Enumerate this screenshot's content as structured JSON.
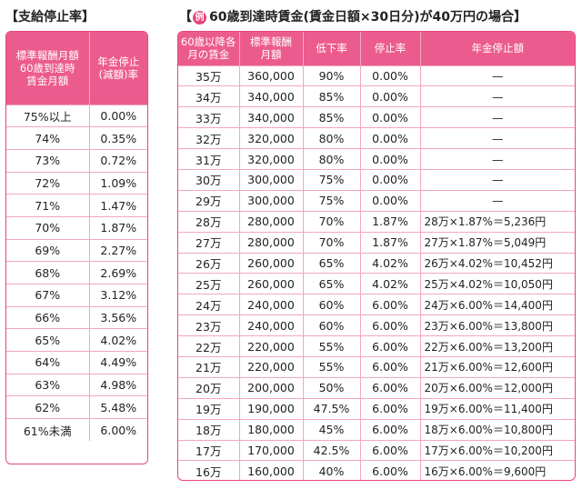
{
  "left": {
    "title": "【支給停止率】",
    "header": [
      "標準報酬月額\n60歳到達時\n賃金月額",
      "年金停止\n(減額)率"
    ],
    "rows": [
      [
        "75%以上",
        "0.00%"
      ],
      [
        "74%",
        "0.35%"
      ],
      [
        "73%",
        "0.72%"
      ],
      [
        "72%",
        "1.09%"
      ],
      [
        "71%",
        "1.47%"
      ],
      [
        "70%",
        "1.87%"
      ],
      [
        "69%",
        "2.27%"
      ],
      [
        "68%",
        "2.69%"
      ],
      [
        "67%",
        "3.12%"
      ],
      [
        "66%",
        "3.56%"
      ],
      [
        "65%",
        "4.02%"
      ],
      [
        "64%",
        "4.49%"
      ],
      [
        "63%",
        "4.98%"
      ],
      [
        "62%",
        "5.48%"
      ],
      [
        "61%未満",
        "6.00%"
      ]
    ]
  },
  "right": {
    "title_open": "【",
    "badge": "例",
    "title_text": "60歳到達時賃金(賃金日額×30日分)が40万円の場合】",
    "header": [
      "60歳以降各\n月の賃金",
      "標準報酬\n月額",
      "低下率",
      "停止率",
      "年金停止額"
    ],
    "rows": [
      [
        "35万",
        "360,000",
        "90%",
        "0.00%",
        "—",
        ""
      ],
      [
        "34万",
        "340,000",
        "85%",
        "0.00%",
        "—",
        ""
      ],
      [
        "33万",
        "340,000",
        "85%",
        "0.00%",
        "—",
        ""
      ],
      [
        "32万",
        "320,000",
        "80%",
        "0.00%",
        "—",
        ""
      ],
      [
        "31万",
        "320,000",
        "80%",
        "0.00%",
        "—",
        ""
      ],
      [
        "30万",
        "300,000",
        "75%",
        "0.00%",
        "—",
        ""
      ],
      [
        "29万",
        "300,000",
        "75%",
        "0.00%",
        "—",
        ""
      ],
      [
        "28万",
        "280,000",
        "70%",
        "1.87%",
        "28万×1.87%＝",
        "5,236円"
      ],
      [
        "27万",
        "280,000",
        "70%",
        "1.87%",
        "27万×1.87%＝",
        "5,049円"
      ],
      [
        "26万",
        "260,000",
        "65%",
        "4.02%",
        "26万×4.02%＝",
        "10,452円"
      ],
      [
        "25万",
        "260,000",
        "65%",
        "4.02%",
        "25万×4.02%＝",
        "10,050円"
      ],
      [
        "24万",
        "240,000",
        "60%",
        "6.00%",
        "24万×6.00%＝",
        "14,400円"
      ],
      [
        "23万",
        "240,000",
        "60%",
        "6.00%",
        "23万×6.00%＝",
        "13,800円"
      ],
      [
        "22万",
        "220,000",
        "55%",
        "6.00%",
        "22万×6.00%＝",
        "13,200円"
      ],
      [
        "21万",
        "220,000",
        "55%",
        "6.00%",
        "21万×6.00%＝",
        "12,600円"
      ],
      [
        "20万",
        "200,000",
        "50%",
        "6.00%",
        "20万×6.00%＝",
        "12,000円"
      ],
      [
        "19万",
        "190,000",
        "47.5%",
        "6.00%",
        "19万×6.00%＝",
        "11,400円"
      ],
      [
        "18万",
        "180,000",
        "45%",
        "6.00%",
        "18万×6.00%＝",
        "10,800円"
      ],
      [
        "17万",
        "170,000",
        "42.5%",
        "6.00%",
        "17万×6.00%＝",
        "10,200円"
      ],
      [
        "16万",
        "160,000",
        "40%",
        "6.00%",
        "16万×6.00%＝",
        "9,600円"
      ]
    ]
  },
  "colors": {
    "accent": "#e8447c",
    "header_bg": "#ec5b8d",
    "grid": "#f3a6c1"
  }
}
